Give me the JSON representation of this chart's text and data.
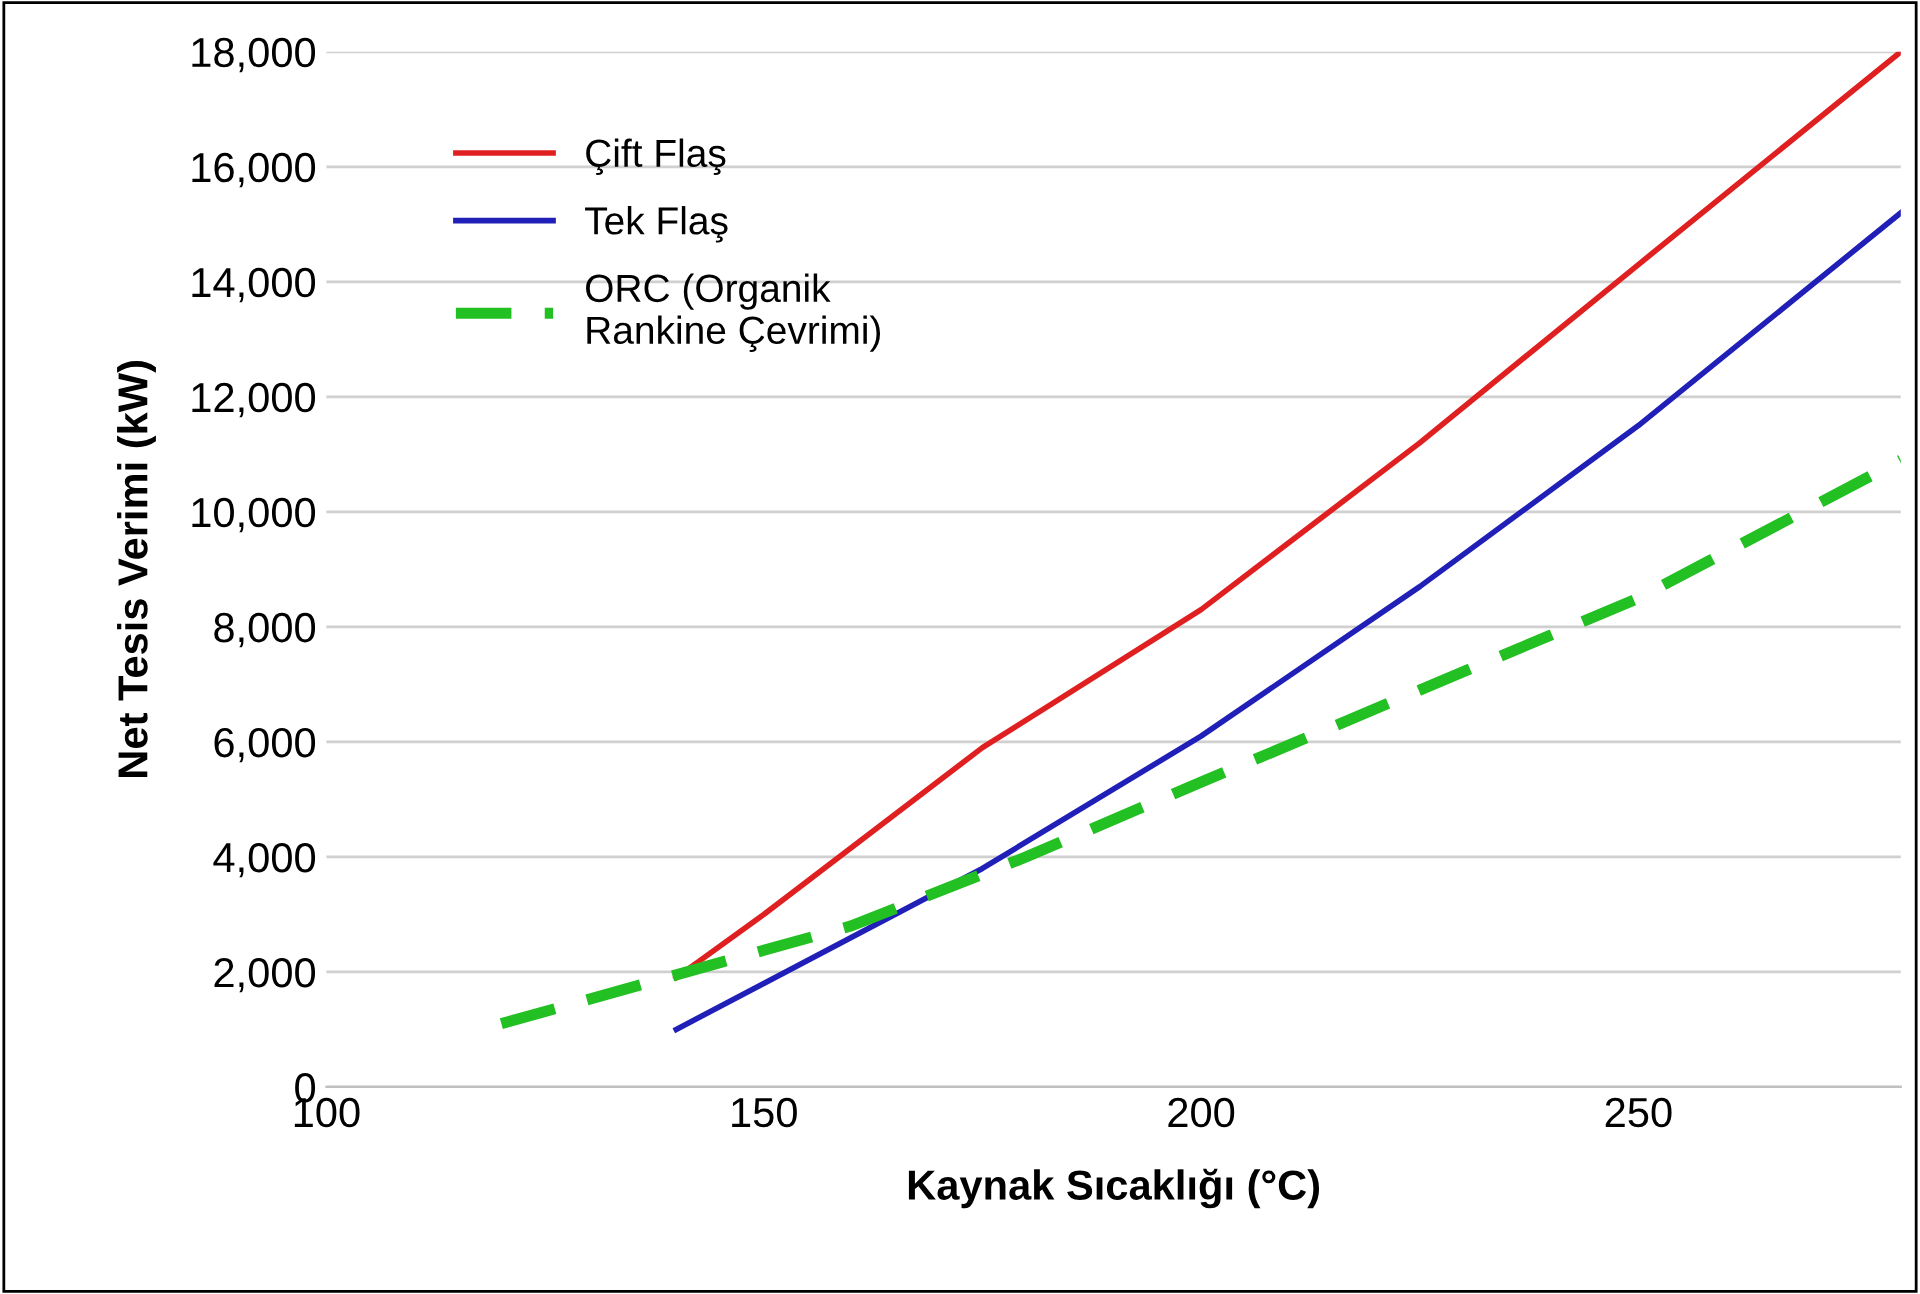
{
  "chart_data": {
    "type": "line",
    "xlabel": "Kaynak Sıcaklığı (°C)",
    "ylabel": "Net Tesis Verimi (kW)",
    "xlim": [
      100,
      280
    ],
    "xticks": [
      100,
      150,
      200,
      250
    ],
    "ylim": [
      0,
      18000
    ],
    "yticks": [
      {
        "value": 0,
        "label": "0"
      },
      {
        "value": 2000,
        "label": "2,000"
      },
      {
        "value": 4000,
        "label": "4,000"
      },
      {
        "value": 6000,
        "label": "6,000"
      },
      {
        "value": 8000,
        "label": "8,000"
      },
      {
        "value": 10000,
        "label": "10,000"
      },
      {
        "value": 12000,
        "label": "12,000"
      },
      {
        "value": 14000,
        "label": "14,000"
      },
      {
        "value": 16000,
        "label": "16,000"
      },
      {
        "value": 18000,
        "label": "18,000"
      }
    ],
    "grid": "y",
    "legend": "top left",
    "marker": "none",
    "series": [
      {
        "name": "Çift Flaş",
        "color": "#e02020",
        "line_style": "solid",
        "x": [
          140,
          150,
          175,
          200,
          225,
          250,
          280
        ],
        "values": [
          1900,
          3000,
          5900,
          8300,
          11200,
          14300,
          18000
        ]
      },
      {
        "name": "Tek Flaş",
        "color": "#2020b8",
        "line_style": "solid",
        "x": [
          140,
          150,
          175,
          200,
          225,
          250,
          280
        ],
        "values": [
          1000,
          1800,
          3800,
          6100,
          8700,
          11500,
          15200
        ]
      },
      {
        "name": "ORC (Organik\nRankine Çevrimi)",
        "color": "#22c022",
        "line_style": "dashed",
        "x": [
          120,
          140,
          160,
          180,
          200,
          225,
          250,
          280
        ],
        "values": [
          1100,
          1950,
          2800,
          4000,
          5300,
          6900,
          8500,
          10900
        ]
      }
    ]
  }
}
